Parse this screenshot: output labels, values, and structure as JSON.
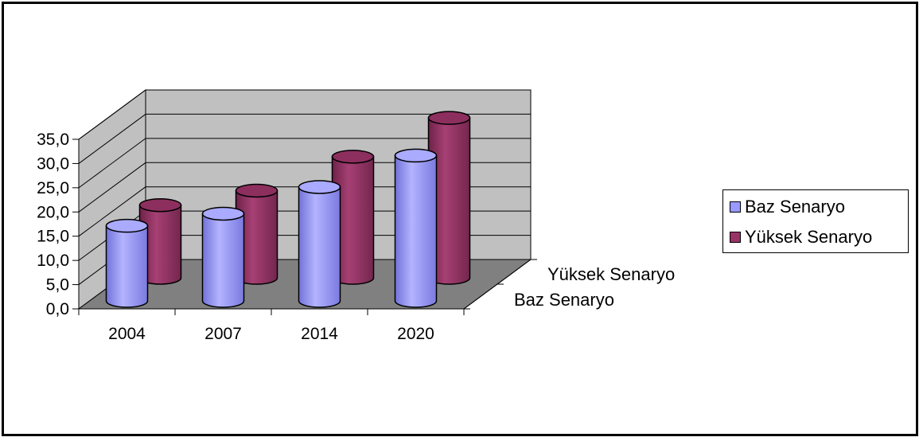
{
  "chart_data": {
    "type": "bar",
    "categories": [
      "2004",
      "2007",
      "2014",
      "2020"
    ],
    "series": [
      {
        "name": "Baz Senaryo",
        "values": [
          15.5,
          18.0,
          23.5,
          30.0
        ]
      },
      {
        "name": "Yüksek Senaryo",
        "values": [
          15.0,
          18.0,
          25.0,
          33.0
        ]
      }
    ],
    "ylim": [
      0,
      35
    ],
    "yticks": [
      "0,0",
      "5,0",
      "10,0",
      "15,0",
      "20,0",
      "25,0",
      "30,0",
      "35,0"
    ],
    "depth_labels": [
      "Yüksek Senaryo",
      "Baz Senaryo"
    ],
    "grid": true,
    "legend_position": "right",
    "colors": {
      "baz": "#9999ff",
      "yuksek": "#993366",
      "back_wall": "#c0c0c0",
      "floor": "#808080"
    }
  }
}
